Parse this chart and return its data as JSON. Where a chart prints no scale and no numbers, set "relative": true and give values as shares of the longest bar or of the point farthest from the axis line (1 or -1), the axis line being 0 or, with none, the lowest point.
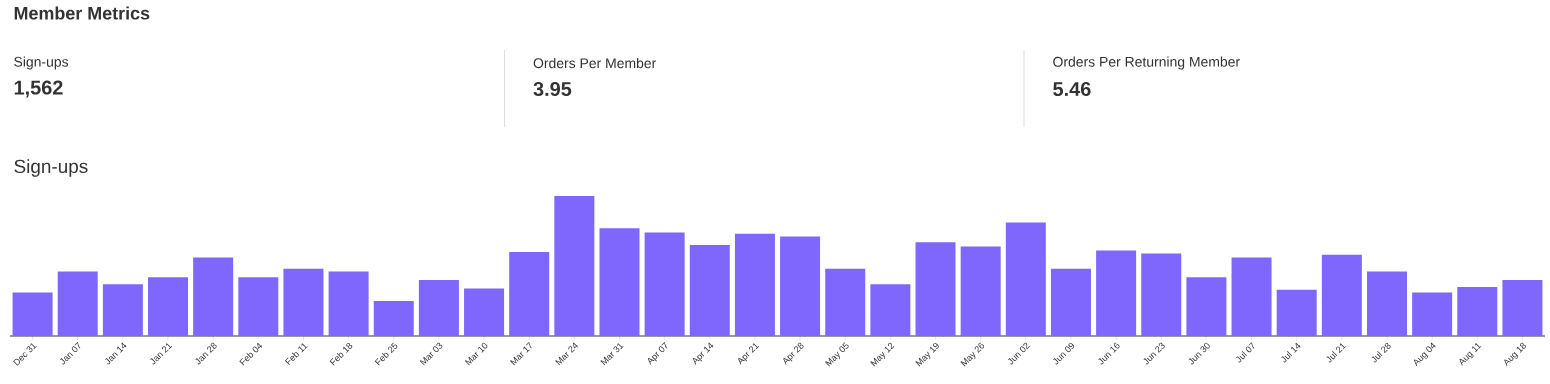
{
  "chart_data": [
    {
      "type": "other",
      "title": "Member Metrics",
      "annotations": [
        "Sign-ups",
        "1,562",
        "Orders Per Member",
        "3.95",
        "Orders Per Returning Member",
        "5.46"
      ]
    },
    {
      "type": "bar",
      "title": "Sign-ups",
      "relative": true,
      "color": "#7f66fc",
      "categories": [
        "Dec 31",
        "Jan 07",
        "Jan 14",
        "Jan 21",
        "Jan 28",
        "Feb 04",
        "Feb 11",
        "Feb 18",
        "Feb 25",
        "Mar 03",
        "Mar 10",
        "Mar 17",
        "Mar 24",
        "Mar 31",
        "Apr 07",
        "Apr 14",
        "Apr 21",
        "Apr 28",
        "May 05",
        "May 12",
        "May 19",
        "May 26",
        "Jun 02",
        "Jun 09",
        "Jun 16",
        "Jun 23",
        "Jun 30",
        "Jul 07",
        "Jul 14",
        "Jul 21",
        "Jul 28",
        "Aug 04",
        "Aug 11",
        "Aug 18"
      ],
      "values": [
        0.31,
        0.46,
        0.37,
        0.42,
        0.56,
        0.42,
        0.48,
        0.46,
        0.25,
        0.4,
        0.34,
        0.6,
        1.0,
        0.77,
        0.74,
        0.65,
        0.73,
        0.71,
        0.48,
        0.37,
        0.67,
        0.64,
        0.81,
        0.48,
        0.61,
        0.59,
        0.42,
        0.56,
        0.33,
        0.58,
        0.46,
        0.31,
        0.35,
        0.4
      ]
    }
  ]
}
